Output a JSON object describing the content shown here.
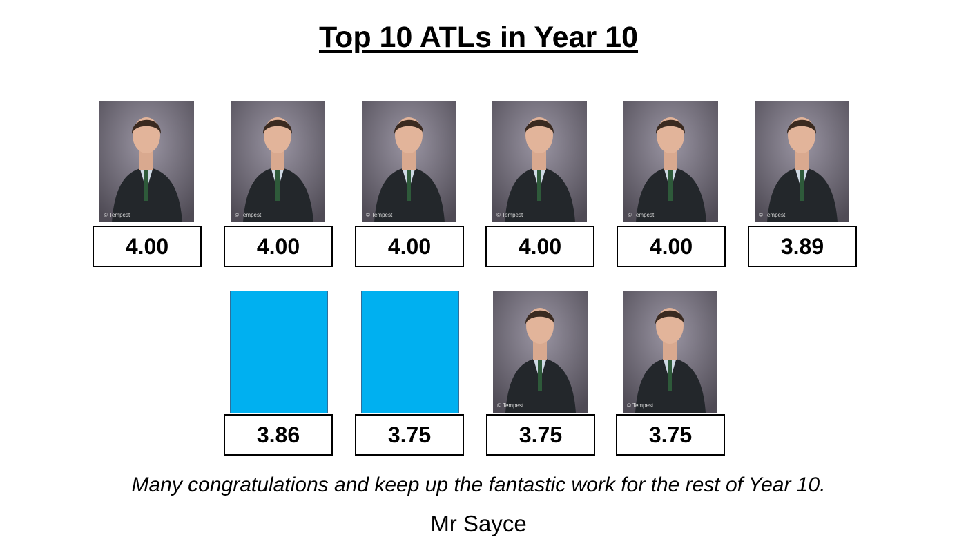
{
  "title": "Top 10 ATLs in Year 10",
  "photo_watermark": "© Tempest",
  "rows": [
    {
      "cards": [
        {
          "score": "4.00"
        },
        {
          "score": "4.00"
        },
        {
          "score": "4.00"
        },
        {
          "score": "4.00"
        },
        {
          "score": "4.00"
        },
        {
          "score": "3.89"
        }
      ]
    },
    {
      "cards": [
        {
          "score": "3.86",
          "color": "#00b0f0"
        },
        {
          "score": "3.75",
          "color": "#00b0f0"
        },
        {
          "score": "3.75"
        },
        {
          "score": "3.75"
        }
      ]
    }
  ],
  "message": "Many congratulations and keep up the fantastic work for the rest of Year 10.",
  "signature": "Mr Sayce"
}
